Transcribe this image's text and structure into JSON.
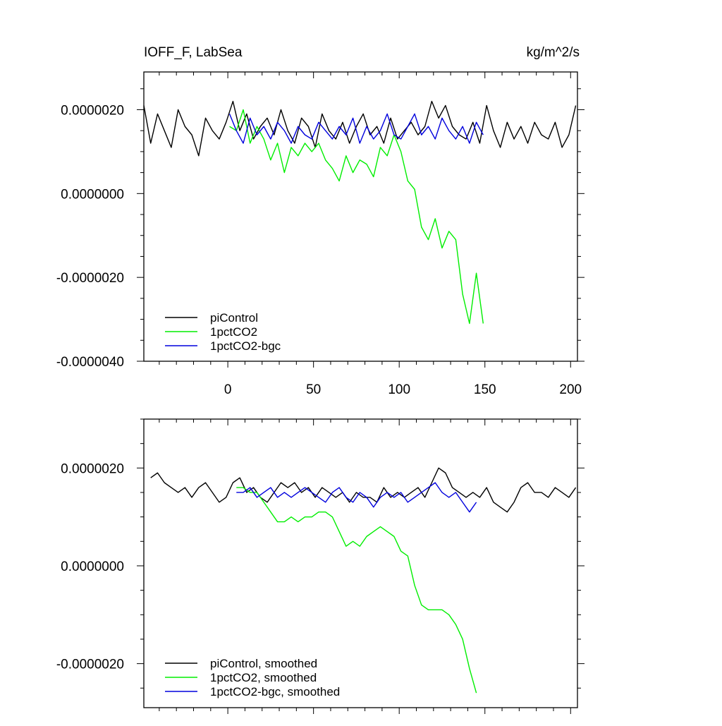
{
  "chart_data": [
    {
      "type": "line",
      "title": "IOFF_F, LabSea",
      "units": "kg/m^2/s",
      "xlabel": "",
      "ylabel": "",
      "xlim": [
        -49,
        204
      ],
      "ylim": [
        -4e-06,
        2.9e-06
      ],
      "x_ticks": [
        0,
        50,
        100,
        150,
        200
      ],
      "y_ticks": [
        -4e-06,
        -2e-06,
        0.0,
        2e-06
      ],
      "y_tick_labels": [
        "-0.0000040",
        "-0.0000020",
        "0.0000000",
        "0.0000020"
      ],
      "grid": false,
      "legend_position": "bottom-left",
      "legend": [
        "piControl",
        "1pctCO2",
        "1pctCO2-bgc"
      ],
      "series": [
        {
          "name": "piControl",
          "color": "#000000",
          "x": [
            -49,
            -45,
            -41,
            -37,
            -33,
            -29,
            -25,
            -21,
            -17,
            -13,
            -9,
            -5,
            -1,
            3,
            7,
            11,
            15,
            19,
            23,
            27,
            31,
            35,
            39,
            43,
            47,
            51,
            55,
            59,
            63,
            67,
            71,
            75,
            79,
            83,
            87,
            91,
            95,
            99,
            103,
            107,
            111,
            115,
            119,
            123,
            127,
            131,
            135,
            139,
            143,
            147,
            151,
            155,
            159,
            163,
            167,
            171,
            175,
            179,
            183,
            187,
            191,
            195,
            199,
            203
          ],
          "y": [
            2.1e-06,
            1.2e-06,
            1.9e-06,
            1.5e-06,
            1.1e-06,
            2e-06,
            1.6e-06,
            1.4e-06,
            9e-07,
            1.8e-06,
            1.5e-06,
            1.3e-06,
            1.7e-06,
            2.2e-06,
            1.5e-06,
            1.9e-06,
            1.3e-06,
            1.6e-06,
            1.8e-06,
            1.4e-06,
            2e-06,
            1.5e-06,
            1.2e-06,
            1.8e-06,
            1.6e-06,
            1.1e-06,
            1.9e-06,
            1.5e-06,
            1.3e-06,
            1.7e-06,
            1.2e-06,
            1.6e-06,
            1.9e-06,
            1.4e-06,
            1.6e-06,
            1.2e-06,
            1.8e-06,
            1.3e-06,
            1.5e-06,
            1.7e-06,
            1.4e-06,
            1.6e-06,
            2.2e-06,
            1.8e-06,
            2.1e-06,
            1.6e-06,
            1.4e-06,
            1.3e-06,
            1.7e-06,
            1.2e-06,
            2.1e-06,
            1.5e-06,
            1.1e-06,
            1.7e-06,
            1.3e-06,
            1.6e-06,
            1.2e-06,
            1.7e-06,
            1.4e-06,
            1.3e-06,
            1.7e-06,
            1.1e-06,
            1.4e-06,
            2.1e-06
          ]
        },
        {
          "name": "1pctCO2",
          "color": "#00ee00",
          "x": [
            1,
            5,
            9,
            13,
            17,
            21,
            25,
            29,
            33,
            37,
            41,
            45,
            49,
            53,
            57,
            61,
            65,
            69,
            73,
            77,
            81,
            85,
            89,
            93,
            97,
            101,
            105,
            109,
            113,
            117,
            121,
            125,
            129,
            133,
            137,
            141,
            145,
            149
          ],
          "y": [
            1.6e-06,
            1.5e-06,
            2e-06,
            1.2e-06,
            1.6e-06,
            1.3e-06,
            8e-07,
            1.2e-06,
            5e-07,
            1.1e-06,
            9e-07,
            1.2e-06,
            1e-06,
            1.2e-06,
            8e-07,
            6e-07,
            3e-07,
            9e-07,
            5e-07,
            8e-07,
            7e-07,
            4e-07,
            1.1e-06,
            9e-07,
            1.4e-06,
            1e-06,
            3e-07,
            1e-07,
            -8e-07,
            -1.1e-06,
            -6e-07,
            -1.3e-06,
            -9e-07,
            -1.1e-06,
            -2.4e-06,
            -3.1e-06,
            -1.9e-06,
            -3.1e-06
          ]
        },
        {
          "name": "1pctCO2-bgc",
          "color": "#0000dd",
          "x": [
            1,
            5,
            9,
            13,
            17,
            21,
            25,
            29,
            33,
            37,
            41,
            45,
            49,
            53,
            57,
            61,
            65,
            69,
            73,
            77,
            81,
            85,
            89,
            93,
            97,
            101,
            105,
            109,
            113,
            117,
            121,
            125,
            129,
            133,
            137,
            141,
            145,
            149
          ],
          "y": [
            1.9e-06,
            1.5e-06,
            1.2e-06,
            1.8e-06,
            1.4e-06,
            1.6e-06,
            1.3e-06,
            1.7e-06,
            1.5e-06,
            1.2e-06,
            1.6e-06,
            1.4e-06,
            1.3e-06,
            1.7e-06,
            1.5e-06,
            1.3e-06,
            1.6e-06,
            1.4e-06,
            1.8e-06,
            1.2e-06,
            1.6e-06,
            1.3e-06,
            1.5e-06,
            1.9e-06,
            1.4e-06,
            1.3e-06,
            1.6e-06,
            1.9e-06,
            1.4e-06,
            1.6e-06,
            1.3e-06,
            1.8e-06,
            1.5e-06,
            1.3e-06,
            1.6e-06,
            1.2e-06,
            1.7e-06,
            1.4e-06
          ]
        }
      ]
    },
    {
      "type": "line",
      "title": "",
      "xlabel": "",
      "ylabel": "",
      "xlim": [
        -49,
        204
      ],
      "ylim": [
        -2.9e-06,
        3e-06
      ],
      "y_ticks": [
        -2e-06,
        0.0,
        2e-06
      ],
      "y_tick_labels": [
        "-0.0000020",
        "0.0000000",
        "0.0000020"
      ],
      "grid": false,
      "legend_position": "bottom-left",
      "legend": [
        "piControl, smoothed",
        "1pctCO2, smoothed",
        "1pctCO2-bgc, smoothed"
      ],
      "series": [
        {
          "name": "piControl, smoothed",
          "color": "#000000",
          "x": [
            -45,
            -41,
            -37,
            -33,
            -29,
            -25,
            -21,
            -17,
            -13,
            -9,
            -5,
            -1,
            3,
            7,
            11,
            15,
            19,
            23,
            27,
            31,
            35,
            39,
            43,
            47,
            51,
            55,
            59,
            63,
            67,
            71,
            75,
            79,
            83,
            87,
            91,
            95,
            99,
            103,
            107,
            111,
            115,
            119,
            123,
            127,
            131,
            135,
            139,
            143,
            147,
            151,
            155,
            159,
            163,
            167,
            171,
            175,
            179,
            183,
            187,
            191,
            195,
            199,
            203
          ],
          "y": [
            1.8e-06,
            1.9e-06,
            1.7e-06,
            1.6e-06,
            1.5e-06,
            1.6e-06,
            1.4e-06,
            1.6e-06,
            1.7e-06,
            1.5e-06,
            1.3e-06,
            1.4e-06,
            1.7e-06,
            1.8e-06,
            1.5e-06,
            1.6e-06,
            1.4e-06,
            1.3e-06,
            1.5e-06,
            1.7e-06,
            1.6e-06,
            1.7e-06,
            1.5e-06,
            1.6e-06,
            1.4e-06,
            1.6e-06,
            1.5e-06,
            1.4e-06,
            1.5e-06,
            1.3e-06,
            1.5e-06,
            1.4e-06,
            1.4e-06,
            1.3e-06,
            1.6e-06,
            1.4e-06,
            1.5e-06,
            1.4e-06,
            1.5e-06,
            1.6e-06,
            1.4e-06,
            1.7e-06,
            2e-06,
            1.9e-06,
            1.6e-06,
            1.5e-06,
            1.4e-06,
            1.5e-06,
            1.4e-06,
            1.6e-06,
            1.3e-06,
            1.2e-06,
            1.1e-06,
            1.3e-06,
            1.6e-06,
            1.7e-06,
            1.5e-06,
            1.5e-06,
            1.4e-06,
            1.6e-06,
            1.5e-06,
            1.4e-06,
            1.6e-06
          ]
        },
        {
          "name": "1pctCO2, smoothed",
          "color": "#00ee00",
          "x": [
            5,
            9,
            13,
            17,
            21,
            25,
            29,
            33,
            37,
            41,
            45,
            49,
            53,
            57,
            61,
            65,
            69,
            73,
            77,
            81,
            85,
            89,
            93,
            97,
            101,
            105,
            109,
            113,
            117,
            121,
            125,
            129,
            133,
            137,
            141,
            145
          ],
          "y": [
            1.6e-06,
            1.6e-06,
            1.5e-06,
            1.5e-06,
            1.3e-06,
            1.1e-06,
            9e-07,
            9e-07,
            1e-06,
            9e-07,
            1e-06,
            1e-06,
            1.1e-06,
            1.1e-06,
            1e-06,
            7e-07,
            4e-07,
            5e-07,
            4e-07,
            6e-07,
            7e-07,
            8e-07,
            7e-07,
            6e-07,
            3e-07,
            2e-07,
            -4e-07,
            -8e-07,
            -9e-07,
            -9e-07,
            -9e-07,
            -1e-06,
            -1.2e-06,
            -1.5e-06,
            -2.1e-06,
            -2.6e-06
          ]
        },
        {
          "name": "1pctCO2-bgc, smoothed",
          "color": "#0000dd",
          "x": [
            5,
            9,
            13,
            17,
            21,
            25,
            29,
            33,
            37,
            41,
            45,
            49,
            53,
            57,
            61,
            65,
            69,
            73,
            77,
            81,
            85,
            89,
            93,
            97,
            101,
            105,
            109,
            113,
            117,
            121,
            125,
            129,
            133,
            137,
            141,
            145
          ],
          "y": [
            1.5e-06,
            1.5e-06,
            1.6e-06,
            1.4e-06,
            1.5e-06,
            1.6e-06,
            1.4e-06,
            1.5e-06,
            1.4e-06,
            1.5e-06,
            1.6e-06,
            1.5e-06,
            1.4e-06,
            1.3e-06,
            1.5e-06,
            1.6e-06,
            1.4e-06,
            1.3e-06,
            1.5e-06,
            1.4e-06,
            1.2e-06,
            1.4e-06,
            1.5e-06,
            1.4e-06,
            1.5e-06,
            1.3e-06,
            1.4e-06,
            1.5e-06,
            1.6e-06,
            1.7e-06,
            1.5e-06,
            1.4e-06,
            1.5e-06,
            1.3e-06,
            1.1e-06,
            1.3e-06
          ]
        }
      ]
    }
  ]
}
